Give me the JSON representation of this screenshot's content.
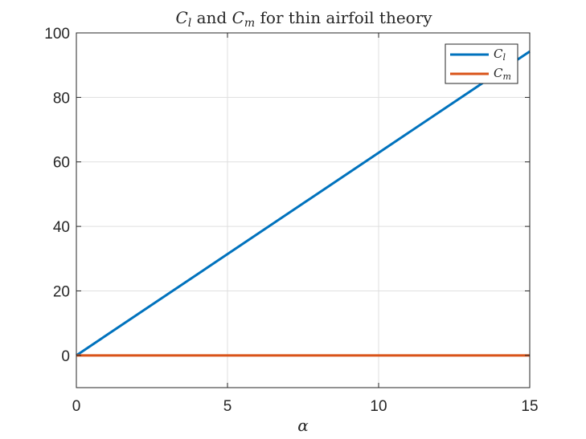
{
  "chart_data": {
    "type": "line",
    "title": {
      "lift_symbol": "C",
      "lift_subscript": "l",
      "joiner": " and ",
      "moment_symbol": "C",
      "moment_subscript": "m",
      "rest": " for thin airfoil theory"
    },
    "xlabel": "α",
    "ylabel": "",
    "xlim": [
      0,
      15
    ],
    "ylim": [
      -10,
      100
    ],
    "xticks": [
      0,
      5,
      10,
      15
    ],
    "yticks": [
      0,
      20,
      40,
      60,
      80,
      100
    ],
    "grid": true,
    "legend_position": "top-right",
    "series": [
      {
        "name": "C_l",
        "name_symbol": "C",
        "name_subscript": "l",
        "color": "#0072BD",
        "x": [
          0,
          15
        ],
        "y": [
          0,
          94.25
        ]
      },
      {
        "name": "C_m",
        "name_symbol": "C",
        "name_subscript": "m",
        "color": "#D95319",
        "x": [
          0,
          15
        ],
        "y": [
          0,
          0
        ]
      }
    ]
  }
}
